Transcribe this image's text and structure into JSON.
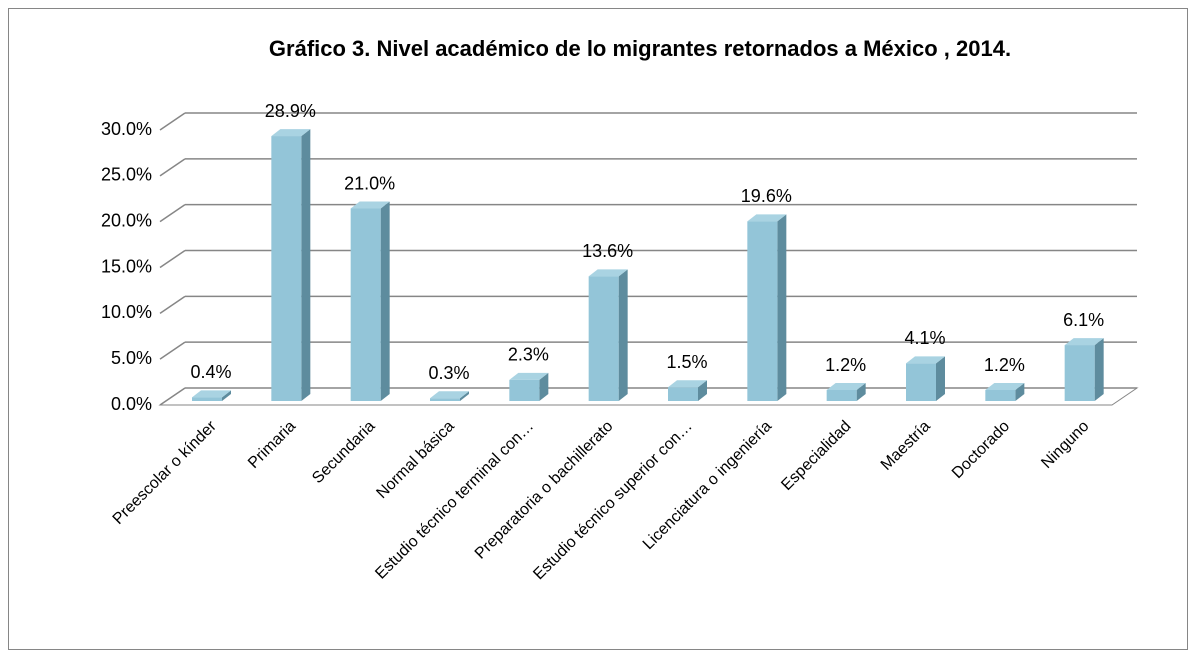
{
  "chart_data": {
    "type": "bar3d",
    "title": "Gráfico 3. Nivel académico de lo migrantes retornados a México , 2014.",
    "categories": [
      "Preescolar o kínder",
      "Primaria",
      "Secundaria",
      "Normal básica",
      "Estudio técnico terminal con…",
      "Preparatoria o bachillerato",
      "Estudio técnico superior con…",
      "Licenciatura o ingeniería",
      "Especialidad",
      "Maestría",
      "Doctorado",
      "Ninguno"
    ],
    "values": [
      0.4,
      28.9,
      21.0,
      0.3,
      2.3,
      13.6,
      1.5,
      19.6,
      1.2,
      4.1,
      1.2,
      6.1
    ],
    "value_labels": [
      "0.4%",
      "28.9%",
      "21.0%",
      "0.3%",
      "2.3%",
      "13.6%",
      "1.5%",
      "19.6%",
      "1.2%",
      "4.1%",
      "1.2%",
      "6.1%"
    ],
    "color": "#93c5d8",
    "ylim": [
      0,
      30
    ],
    "yticks": [
      {
        "value": 0,
        "label": "0.0%"
      },
      {
        "value": 5,
        "label": "5.0%"
      },
      {
        "value": 10,
        "label": "10.0%"
      },
      {
        "value": 15,
        "label": "15.0%"
      },
      {
        "value": 20,
        "label": "20.0%"
      },
      {
        "value": 25,
        "label": "25.0%"
      },
      {
        "value": 30,
        "label": "30.0%"
      }
    ],
    "grid": true
  }
}
